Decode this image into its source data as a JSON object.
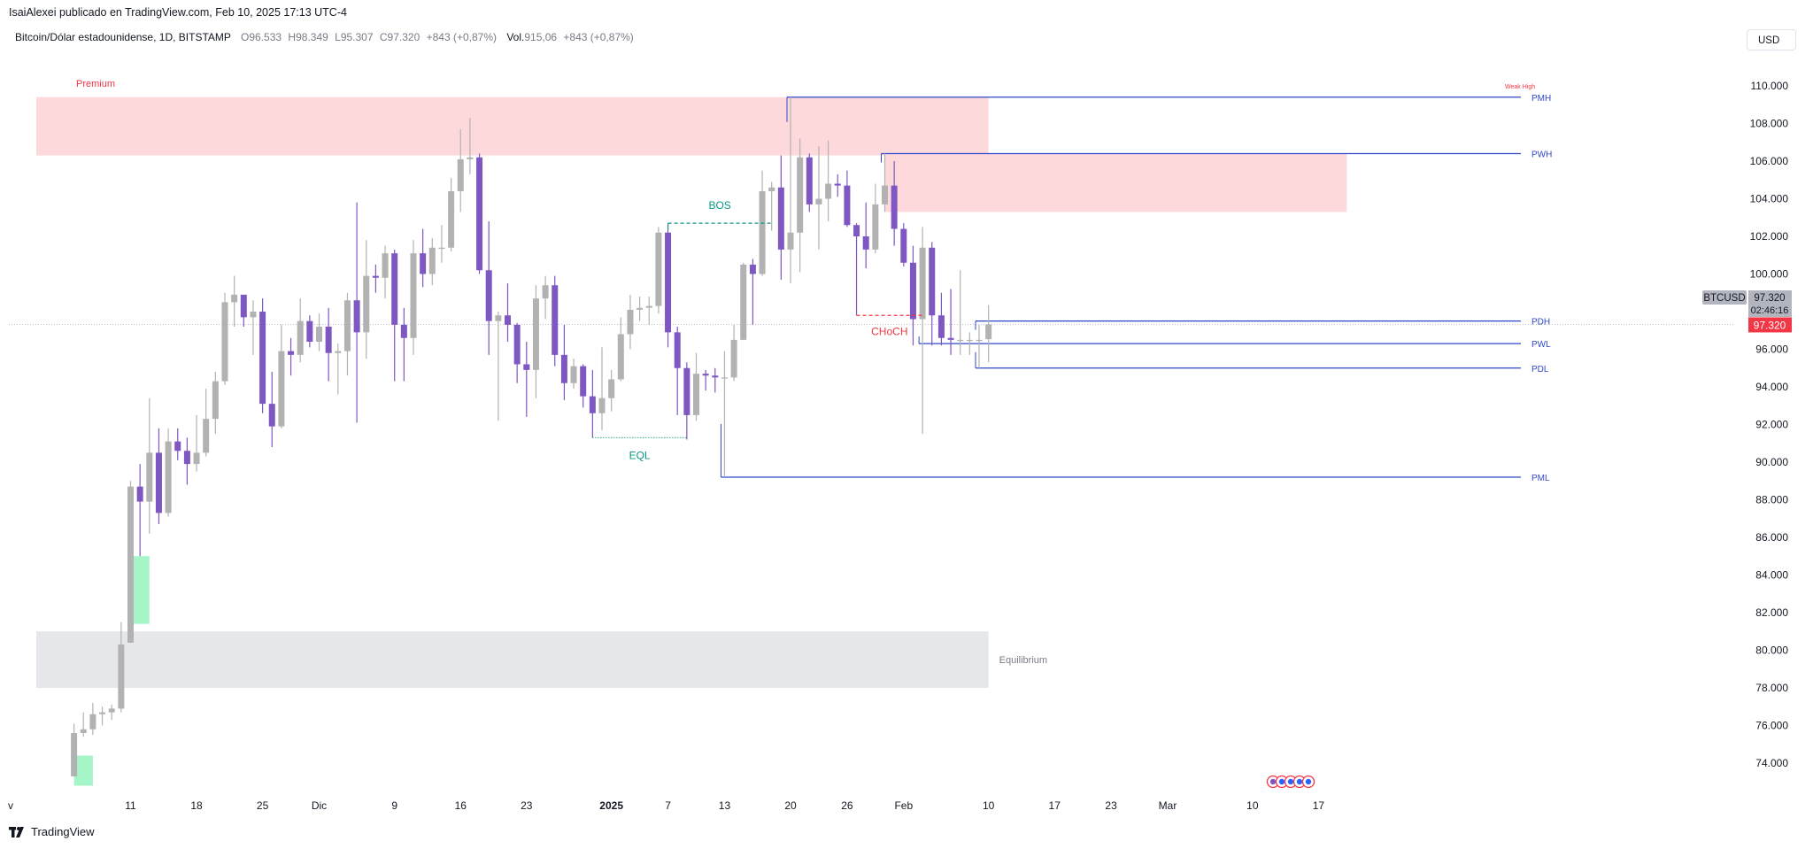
{
  "attribution": "IsaiAlexei publicado en TradingView.com, Feb 10, 2025 17:13 UTC-4",
  "legend": {
    "symbol": "Bitcoin/Dólar estadounidense, 1D, BITSTAMP",
    "o_label": "O",
    "o_value": "96.533",
    "h_label": "H",
    "h_value": "98.349",
    "l_label": "L",
    "l_value": "95.307",
    "c_label": "C",
    "c_value": "97.320",
    "change": "+843 (+0,87%)",
    "vol_label": "Vol.",
    "vol_value": "915,06",
    "vol_change": "+843 (+0,87%)"
  },
  "currency_button": "USD",
  "footer_brand": "TradingView",
  "colors": {
    "bull": "#b2b2b2",
    "bear": "#7e57c2",
    "premium_zone": "#fdd9dc",
    "equilibrium_zone": "#e6e7ea",
    "fvg": "#a6f5c8",
    "level_line": "#2f47c9",
    "bos": "#089981",
    "choch": "#f23645",
    "price_tag": "#f23645"
  },
  "chart_data": {
    "type": "candlestick",
    "title": "Bitcoin/Dólar estadounidense, 1D, BITSTAMP",
    "ylim": [
      72800,
      111800
    ],
    "y_ticks": [
      "110.000",
      "108.000",
      "106.000",
      "104.000",
      "102.000",
      "100.000",
      "98.000",
      "96.000",
      "94.000",
      "92.000",
      "90.000",
      "88.000",
      "86.000",
      "84.000",
      "82.000",
      "80.000",
      "78.000",
      "76.000",
      "74.000"
    ],
    "y_tick_values": [
      110000,
      108000,
      106000,
      104000,
      102000,
      100000,
      98000,
      96000,
      94000,
      92000,
      90000,
      88000,
      86000,
      84000,
      82000,
      80000,
      78000,
      76000,
      74000
    ],
    "x_ticks": [
      {
        "label": "v",
        "date": "2024-11-01"
      },
      {
        "label": "11",
        "date": "2024-11-11"
      },
      {
        "label": "18",
        "date": "2024-11-18"
      },
      {
        "label": "25",
        "date": "2024-11-25"
      },
      {
        "label": "Dic",
        "date": "2024-12-01"
      },
      {
        "label": "9",
        "date": "2024-12-09"
      },
      {
        "label": "16",
        "date": "2024-12-16"
      },
      {
        "label": "23",
        "date": "2024-12-23"
      },
      {
        "label": "2025",
        "date": "2025-01-01"
      },
      {
        "label": "7",
        "date": "2025-01-07"
      },
      {
        "label": "13",
        "date": "2025-01-13"
      },
      {
        "label": "20",
        "date": "2025-01-20"
      },
      {
        "label": "26",
        "date": "2025-01-26"
      },
      {
        "label": "Feb",
        "date": "2025-02-01"
      },
      {
        "label": "10",
        "date": "2025-02-10"
      },
      {
        "label": "17",
        "date": "2025-02-17"
      },
      {
        "label": "23",
        "date": "2025-02-23"
      },
      {
        "label": "Mar",
        "date": "2025-03-01"
      },
      {
        "label": "10",
        "date": "2025-03-10"
      },
      {
        "label": "17",
        "date": "2025-03-17"
      }
    ],
    "candles": [
      {
        "date": "2024-11-05",
        "o": 73300,
        "h": 76100,
        "l": 73300,
        "c": 75600
      },
      {
        "date": "2024-11-06",
        "o": 75600,
        "h": 76700,
        "l": 75400,
        "c": 75800
      },
      {
        "date": "2024-11-07",
        "o": 75800,
        "h": 77200,
        "l": 75500,
        "c": 76600
      },
      {
        "date": "2024-11-08",
        "o": 76600,
        "h": 77000,
        "l": 76000,
        "c": 76700
      },
      {
        "date": "2024-11-09",
        "o": 76700,
        "h": 77100,
        "l": 76300,
        "c": 76900
      },
      {
        "date": "2024-11-10",
        "o": 76900,
        "h": 81500,
        "l": 76700,
        "c": 80300
      },
      {
        "date": "2024-11-11",
        "o": 80400,
        "h": 89000,
        "l": 80400,
        "c": 88700
      },
      {
        "date": "2024-11-12",
        "o": 88700,
        "h": 89900,
        "l": 85000,
        "c": 87900
      },
      {
        "date": "2024-11-13",
        "o": 87900,
        "h": 93400,
        "l": 86200,
        "c": 90500
      },
      {
        "date": "2024-11-14",
        "o": 90500,
        "h": 91800,
        "l": 86700,
        "c": 87300
      },
      {
        "date": "2024-11-15",
        "o": 87300,
        "h": 91800,
        "l": 87100,
        "c": 91100
      },
      {
        "date": "2024-11-16",
        "o": 91100,
        "h": 91800,
        "l": 90100,
        "c": 90600
      },
      {
        "date": "2024-11-17",
        "o": 90600,
        "h": 91300,
        "l": 88800,
        "c": 89900
      },
      {
        "date": "2024-11-18",
        "o": 89900,
        "h": 92500,
        "l": 89500,
        "c": 90500
      },
      {
        "date": "2024-11-19",
        "o": 90500,
        "h": 93900,
        "l": 90300,
        "c": 92300
      },
      {
        "date": "2024-11-20",
        "o": 92300,
        "h": 94800,
        "l": 91500,
        "c": 94300
      },
      {
        "date": "2024-11-21",
        "o": 94300,
        "h": 99000,
        "l": 94100,
        "c": 98500
      },
      {
        "date": "2024-11-22",
        "o": 98500,
        "h": 99900,
        "l": 97200,
        "c": 98900
      },
      {
        "date": "2024-11-23",
        "o": 98900,
        "h": 98800,
        "l": 97200,
        "c": 97700
      },
      {
        "date": "2024-11-24",
        "o": 97700,
        "h": 98600,
        "l": 95700,
        "c": 98000
      },
      {
        "date": "2024-11-25",
        "o": 98000,
        "h": 98700,
        "l": 92600,
        "c": 93100
      },
      {
        "date": "2024-11-26",
        "o": 93100,
        "h": 94800,
        "l": 90800,
        "c": 91900
      },
      {
        "date": "2024-11-27",
        "o": 91900,
        "h": 97300,
        "l": 91800,
        "c": 95900
      },
      {
        "date": "2024-11-28",
        "o": 95900,
        "h": 96600,
        "l": 94600,
        "c": 95700
      },
      {
        "date": "2024-11-29",
        "o": 95700,
        "h": 98700,
        "l": 95300,
        "c": 97500
      },
      {
        "date": "2024-11-30",
        "o": 97500,
        "h": 97800,
        "l": 96100,
        "c": 96400
      },
      {
        "date": "2024-12-01",
        "o": 96400,
        "h": 97900,
        "l": 95900,
        "c": 97200
      },
      {
        "date": "2024-12-02",
        "o": 97200,
        "h": 98200,
        "l": 94300,
        "c": 95800
      },
      {
        "date": "2024-12-03",
        "o": 95800,
        "h": 96300,
        "l": 93600,
        "c": 95900
      },
      {
        "date": "2024-12-04",
        "o": 95900,
        "h": 99000,
        "l": 94600,
        "c": 98600
      },
      {
        "date": "2024-12-05",
        "o": 98600,
        "h": 103800,
        "l": 92100,
        "c": 96900
      },
      {
        "date": "2024-12-06",
        "o": 96900,
        "h": 101800,
        "l": 95500,
        "c": 99900
      },
      {
        "date": "2024-12-07",
        "o": 99900,
        "h": 100500,
        "l": 99000,
        "c": 99800
      },
      {
        "date": "2024-12-08",
        "o": 99800,
        "h": 101500,
        "l": 98700,
        "c": 101100
      },
      {
        "date": "2024-12-09",
        "o": 101100,
        "h": 101300,
        "l": 94300,
        "c": 97300
      },
      {
        "date": "2024-12-10",
        "o": 97300,
        "h": 98200,
        "l": 94300,
        "c": 96600
      },
      {
        "date": "2024-12-11",
        "o": 96600,
        "h": 101800,
        "l": 95700,
        "c": 101100
      },
      {
        "date": "2024-12-12",
        "o": 101100,
        "h": 102400,
        "l": 99300,
        "c": 100000
      },
      {
        "date": "2024-12-13",
        "o": 100000,
        "h": 101900,
        "l": 99400,
        "c": 101400
      },
      {
        "date": "2024-12-14",
        "o": 101400,
        "h": 102600,
        "l": 100600,
        "c": 101400
      },
      {
        "date": "2024-12-15",
        "o": 101400,
        "h": 105100,
        "l": 101200,
        "c": 104400
      },
      {
        "date": "2024-12-16",
        "o": 104400,
        "h": 107700,
        "l": 103300,
        "c": 106100
      },
      {
        "date": "2024-12-17",
        "o": 106100,
        "h": 108300,
        "l": 105300,
        "c": 106200
      },
      {
        "date": "2024-12-18",
        "o": 106200,
        "h": 106400,
        "l": 100000,
        "c": 100200
      },
      {
        "date": "2024-12-19",
        "o": 100200,
        "h": 102800,
        "l": 95700,
        "c": 97500
      },
      {
        "date": "2024-12-20",
        "o": 97500,
        "h": 98000,
        "l": 92200,
        "c": 97800
      },
      {
        "date": "2024-12-21",
        "o": 97800,
        "h": 99500,
        "l": 96400,
        "c": 97300
      },
      {
        "date": "2024-12-22",
        "o": 97300,
        "h": 97400,
        "l": 94200,
        "c": 95200
      },
      {
        "date": "2024-12-23",
        "o": 95200,
        "h": 96400,
        "l": 92400,
        "c": 94900
      },
      {
        "date": "2024-12-24",
        "o": 94900,
        "h": 99400,
        "l": 93400,
        "c": 98700
      },
      {
        "date": "2024-12-25",
        "o": 98700,
        "h": 99900,
        "l": 97600,
        "c": 99400
      },
      {
        "date": "2024-12-26",
        "o": 99400,
        "h": 99900,
        "l": 95100,
        "c": 95700
      },
      {
        "date": "2024-12-27",
        "o": 95700,
        "h": 97300,
        "l": 93300,
        "c": 94200
      },
      {
        "date": "2024-12-28",
        "o": 94200,
        "h": 95500,
        "l": 93900,
        "c": 95100
      },
      {
        "date": "2024-12-29",
        "o": 95100,
        "h": 95200,
        "l": 92900,
        "c": 93500
      },
      {
        "date": "2024-12-30",
        "o": 93500,
        "h": 94900,
        "l": 91300,
        "c": 92600
      },
      {
        "date": "2024-12-31",
        "o": 92600,
        "h": 96100,
        "l": 91700,
        "c": 93400
      },
      {
        "date": "2025-01-01",
        "o": 93400,
        "h": 94900,
        "l": 92700,
        "c": 94400
      },
      {
        "date": "2025-01-02",
        "o": 94400,
        "h": 97700,
        "l": 94300,
        "c": 96800
      },
      {
        "date": "2025-01-03",
        "o": 96800,
        "h": 98900,
        "l": 96000,
        "c": 98100
      },
      {
        "date": "2025-01-04",
        "o": 98100,
        "h": 98800,
        "l": 97500,
        "c": 98200
      },
      {
        "date": "2025-01-05",
        "o": 98200,
        "h": 98800,
        "l": 97300,
        "c": 98300
      },
      {
        "date": "2025-01-06",
        "o": 98300,
        "h": 102500,
        "l": 97900,
        "c": 102200
      },
      {
        "date": "2025-01-07",
        "o": 102200,
        "h": 102700,
        "l": 96100,
        "c": 96900
      },
      {
        "date": "2025-01-08",
        "o": 96900,
        "h": 97200,
        "l": 92500,
        "c": 95000
      },
      {
        "date": "2025-01-09",
        "o": 95000,
        "h": 95300,
        "l": 91200,
        "c": 92500
      },
      {
        "date": "2025-01-10",
        "o": 92500,
        "h": 95800,
        "l": 92200,
        "c": 94700
      },
      {
        "date": "2025-01-11",
        "o": 94700,
        "h": 94900,
        "l": 93800,
        "c": 94600
      },
      {
        "date": "2025-01-12",
        "o": 94600,
        "h": 95000,
        "l": 93700,
        "c": 94500
      },
      {
        "date": "2025-01-13",
        "o": 94500,
        "h": 95900,
        "l": 89200,
        "c": 94500
      },
      {
        "date": "2025-01-14",
        "o": 94500,
        "h": 97300,
        "l": 94300,
        "c": 96500
      },
      {
        "date": "2025-01-15",
        "o": 96500,
        "h": 100600,
        "l": 96500,
        "c": 100500
      },
      {
        "date": "2025-01-16",
        "o": 100500,
        "h": 100800,
        "l": 97300,
        "c": 100000
      },
      {
        "date": "2025-01-17",
        "o": 100000,
        "h": 105500,
        "l": 99900,
        "c": 104400
      },
      {
        "date": "2025-01-18",
        "o": 104400,
        "h": 104900,
        "l": 102300,
        "c": 104600
      },
      {
        "date": "2025-01-19",
        "o": 104600,
        "h": 106300,
        "l": 99700,
        "c": 101300
      },
      {
        "date": "2025-01-20",
        "o": 101300,
        "h": 109400,
        "l": 99500,
        "c": 102200
      },
      {
        "date": "2025-01-21",
        "o": 102200,
        "h": 107200,
        "l": 100100,
        "c": 106200
      },
      {
        "date": "2025-01-22",
        "o": 106200,
        "h": 106400,
        "l": 103300,
        "c": 103700
      },
      {
        "date": "2025-01-23",
        "o": 103700,
        "h": 106800,
        "l": 101300,
        "c": 104000
      },
      {
        "date": "2025-01-24",
        "o": 104000,
        "h": 107100,
        "l": 102800,
        "c": 104800
      },
      {
        "date": "2025-01-25",
        "o": 104800,
        "h": 105300,
        "l": 104100,
        "c": 104700
      },
      {
        "date": "2025-01-26",
        "o": 104700,
        "h": 105500,
        "l": 102500,
        "c": 102600
      },
      {
        "date": "2025-01-27",
        "o": 102600,
        "h": 102700,
        "l": 97800,
        "c": 102000
      },
      {
        "date": "2025-01-28",
        "o": 102000,
        "h": 103800,
        "l": 100300,
        "c": 101300
      },
      {
        "date": "2025-01-29",
        "o": 101300,
        "h": 104800,
        "l": 101100,
        "c": 103700
      },
      {
        "date": "2025-01-30",
        "o": 103700,
        "h": 106400,
        "l": 103300,
        "c": 104700
      },
      {
        "date": "2025-01-31",
        "o": 104700,
        "h": 106000,
        "l": 101500,
        "c": 102400
      },
      {
        "date": "2025-02-01",
        "o": 102400,
        "h": 102700,
        "l": 100400,
        "c": 100600
      },
      {
        "date": "2025-02-02",
        "o": 100600,
        "h": 101500,
        "l": 96200,
        "c": 97600
      },
      {
        "date": "2025-02-03",
        "o": 97600,
        "h": 102500,
        "l": 91500,
        "c": 101400
      },
      {
        "date": "2025-02-04",
        "o": 101400,
        "h": 101700,
        "l": 96200,
        "c": 97800
      },
      {
        "date": "2025-02-05",
        "o": 97800,
        "h": 99000,
        "l": 96200,
        "c": 96600
      },
      {
        "date": "2025-02-06",
        "o": 96600,
        "h": 99200,
        "l": 95700,
        "c": 96500
      },
      {
        "date": "2025-02-07",
        "o": 96500,
        "h": 100200,
        "l": 95700,
        "c": 96500
      },
      {
        "date": "2025-02-08",
        "o": 96500,
        "h": 96900,
        "l": 95700,
        "c": 96500
      },
      {
        "date": "2025-02-09",
        "o": 96500,
        "h": 97300,
        "l": 95000,
        "c": 96500
      },
      {
        "date": "2025-02-10",
        "o": 96533,
        "h": 98349,
        "l": 95307,
        "c": 97320
      }
    ],
    "zones": [
      {
        "label": "Premium",
        "start": "2024-11-01",
        "end": "2025-02-10",
        "top": 109400,
        "bottom": 106300,
        "color": "premium_zone"
      },
      {
        "label": "",
        "start": "2025-01-30",
        "end": "2025-03-20",
        "top": 106400,
        "bottom": 103300,
        "color": "premium_zone"
      },
      {
        "label": "Equilibrium",
        "start": "2024-11-01",
        "end": "2025-02-10",
        "top": 81000,
        "bottom": 78000,
        "color": "equilibrium_zone"
      },
      {
        "label": "",
        "start": "2024-11-11",
        "end": "2024-11-13",
        "top": 85000,
        "bottom": 81400,
        "color": "fvg"
      },
      {
        "label": "",
        "start": "2024-11-05",
        "end": "2024-11-07",
        "top": 74400,
        "bottom": 72800,
        "color": "fvg"
      }
    ],
    "levels": [
      {
        "label": "PMH",
        "value": 109400,
        "start": "2025-01-20"
      },
      {
        "label": "PWH",
        "value": 106400,
        "start": "2025-01-30"
      },
      {
        "label": "PDH",
        "value": 97500,
        "start": "2025-02-09"
      },
      {
        "label": "PWL",
        "value": 96300,
        "start": "2025-02-03"
      },
      {
        "label": "PDL",
        "value": 95000,
        "start": "2025-02-09"
      },
      {
        "label": "PML",
        "value": 89200,
        "start": "2025-01-13"
      }
    ],
    "structure": [
      {
        "label": "BOS",
        "value": 102700,
        "start": "2025-01-07",
        "end": "2025-01-18",
        "color": "bos"
      },
      {
        "label": "EQL",
        "value": 91300,
        "start": "2024-12-30",
        "end": "2025-01-09",
        "color": "bos"
      },
      {
        "label": "CHoCH",
        "value": 97800,
        "start": "2025-01-27",
        "end": "2025-02-03",
        "color": "choch"
      }
    ],
    "annotations": [
      {
        "text": "Weak High",
        "date": "2025-02-13",
        "value": 110000
      }
    ],
    "price_tags": {
      "symbol_label": "BTCUSD",
      "symbol_value": "97.320",
      "countdown": "02:46:16",
      "last_price": "97.320",
      "last_price_value": 97320
    }
  }
}
